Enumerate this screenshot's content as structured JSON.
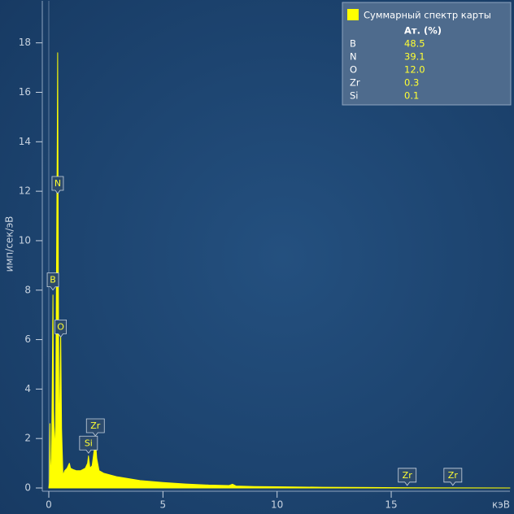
{
  "chart_data": {
    "type": "area",
    "x_label": "кэВ",
    "y_label": "имп/сек/эВ",
    "x": [
      0,
      0.03,
      0.05,
      0.08,
      0.12,
      0.15,
      0.18,
      0.21,
      0.25,
      0.3,
      0.34,
      0.37,
      0.39,
      0.42,
      0.45,
      0.48,
      0.52,
      0.56,
      0.62,
      0.7,
      0.8,
      0.9,
      0.95,
      1.05,
      1.2,
      1.4,
      1.6,
      1.7,
      1.74,
      1.8,
      1.9,
      2.0,
      2.04,
      2.1,
      2.2,
      2.4,
      3,
      4,
      5,
      6,
      7,
      7.9,
      8.05,
      8.2,
      9,
      10,
      12,
      14,
      16,
      20.2
    ],
    "series": [
      {
        "name": "Суммарный спектр карты",
        "color": "#ffff00",
        "values": [
          0,
          0.2,
          2.6,
          0.3,
          1.2,
          4,
          7.8,
          3.2,
          1.5,
          2.5,
          9,
          14,
          17.6,
          8,
          2.2,
          3.5,
          6.3,
          2.4,
          0.5,
          0.7,
          0.8,
          1,
          0.8,
          0.75,
          0.7,
          0.7,
          0.8,
          1,
          1.3,
          0.8,
          0.9,
          1.6,
          2,
          1.2,
          0.7,
          0.6,
          0.45,
          0.3,
          0.22,
          0.16,
          0.12,
          0.1,
          0.15,
          0.08,
          0.06,
          0.05,
          0.03,
          0.02,
          0.01,
          0
        ]
      }
    ],
    "xlim": [
      0,
      20.2
    ],
    "ylim": [
      0,
      19.7
    ],
    "xticks": [
      0,
      5,
      10,
      15
    ],
    "yticks": [
      0,
      2,
      4,
      6,
      8,
      10,
      12,
      14,
      16,
      18
    ],
    "annotations": [
      {
        "text": "B",
        "x": 0.18,
        "y": 8.4
      },
      {
        "text": "N",
        "x": 0.39,
        "y": 12.3
      },
      {
        "text": "O",
        "x": 0.52,
        "y": 6.5
      },
      {
        "text": "Si",
        "x": 1.74,
        "y": 1.8
      },
      {
        "text": "Zr",
        "x": 2.04,
        "y": 2.5
      },
      {
        "text": "Zr",
        "x": 15.7,
        "y": 0.5
      },
      {
        "text": "Zr",
        "x": 17.7,
        "y": 0.5
      }
    ],
    "legend_table": {
      "header": "Ат. (%)",
      "rows": [
        {
          "element": "B",
          "value": 48.5,
          "value_label": "48.5"
        },
        {
          "element": "N",
          "value": 39.1,
          "value_label": "39.1"
        },
        {
          "element": "O",
          "value": 12.0,
          "value_label": "12.0"
        },
        {
          "element": "Zr",
          "value": 0.3,
          "value_label": "0.3"
        },
        {
          "element": "Si",
          "value": 0.1,
          "value_label": "0.1"
        }
      ]
    }
  }
}
